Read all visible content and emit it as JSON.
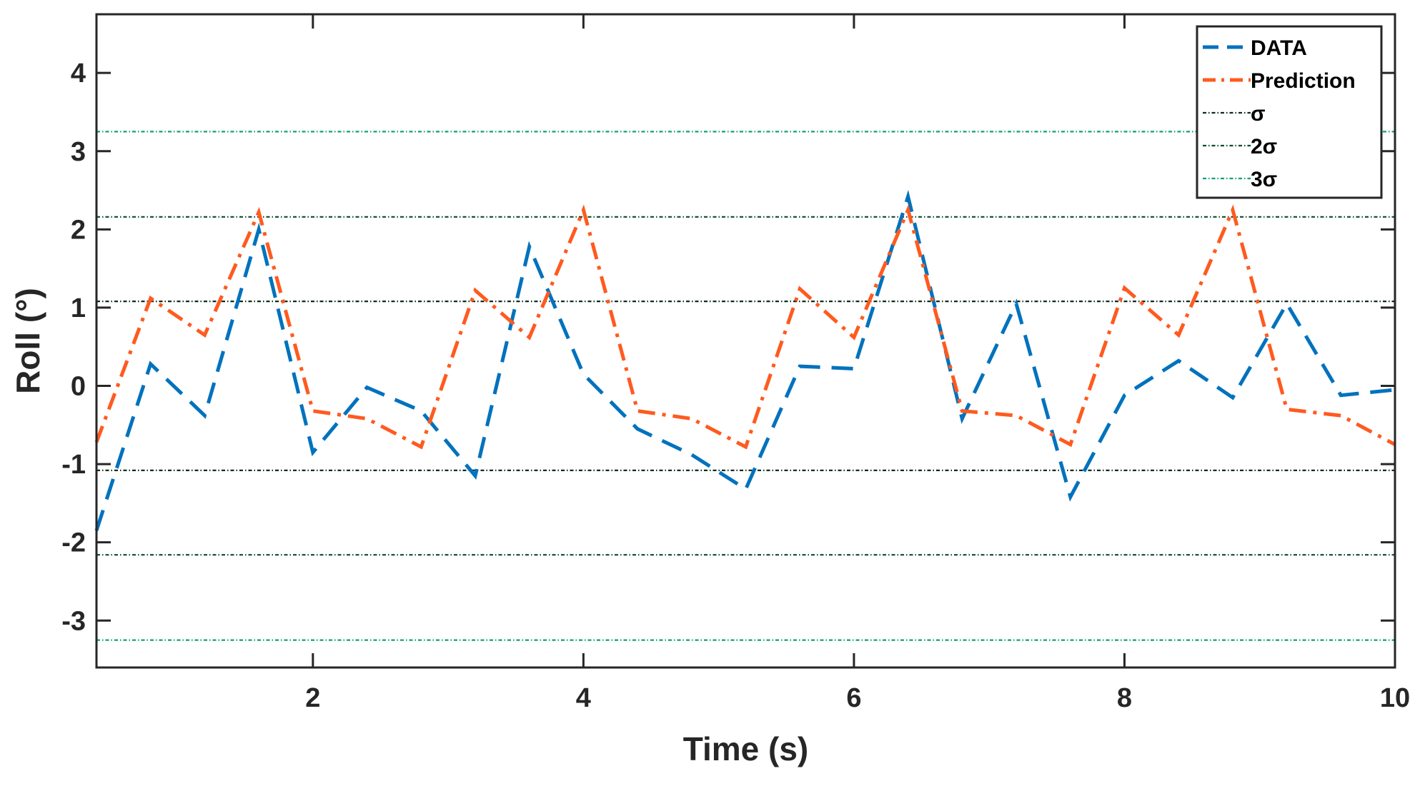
{
  "chart_data": {
    "type": "line",
    "xlabel": "Time (s)",
    "ylabel": "Roll (°)",
    "xlim": [
      0.4,
      10
    ],
    "ylim": [
      -3.6,
      4.75
    ],
    "xticks": [
      2,
      4,
      6,
      8,
      10
    ],
    "xtick_labels": [
      "2",
      "4",
      "6",
      "8",
      "10"
    ],
    "yticks": [
      -3,
      -2,
      -1,
      0,
      1,
      2,
      3,
      4
    ],
    "ytick_labels": [
      "-3",
      "-2",
      "-1",
      "0",
      "1",
      "2",
      "3",
      "4"
    ],
    "grid": false,
    "legend_position": "top-right",
    "series": [
      {
        "name": "DATA",
        "color": "#0072BD",
        "style": "dashed",
        "x": [
          0.4,
          0.8,
          1.2,
          1.6,
          2.0,
          2.4,
          2.8,
          3.2,
          3.6,
          4.0,
          4.4,
          4.8,
          5.2,
          5.6,
          6.0,
          6.4,
          6.8,
          7.2,
          7.6,
          8.0,
          8.4,
          8.8,
          9.2,
          9.6,
          10.0
        ],
        "y": [
          -1.85,
          0.28,
          -0.38,
          2.0,
          -0.85,
          -0.02,
          -0.32,
          -1.15,
          1.78,
          0.15,
          -0.55,
          -0.88,
          -1.32,
          0.25,
          0.22,
          2.42,
          -0.42,
          1.05,
          -1.42,
          -0.12,
          0.32,
          -0.15,
          1.05,
          -0.12,
          -0.05
        ]
      },
      {
        "name": "Prediction",
        "color": "#FF5A1F",
        "style": "dash-dot",
        "x": [
          0.4,
          0.8,
          1.2,
          1.6,
          2.0,
          2.4,
          2.8,
          3.2,
          3.6,
          4.0,
          4.4,
          4.8,
          5.2,
          5.6,
          6.0,
          6.4,
          6.8,
          7.2,
          7.6,
          8.0,
          8.4,
          8.8,
          9.2,
          9.6,
          10.0
        ],
        "y": [
          -0.72,
          1.12,
          0.65,
          2.22,
          -0.32,
          -0.42,
          -0.78,
          1.22,
          0.62,
          2.25,
          -0.32,
          -0.42,
          -0.78,
          1.24,
          0.62,
          2.25,
          -0.32,
          -0.38,
          -0.75,
          1.25,
          0.65,
          2.25,
          -0.3,
          -0.38,
          -0.75
        ]
      }
    ],
    "reference_lines": [
      {
        "name": "σ",
        "color": "#0B2E1A",
        "values": [
          1.08,
          -1.08
        ]
      },
      {
        "name": "2σ",
        "color": "#0D4A2A",
        "values": [
          2.16,
          -2.16
        ]
      },
      {
        "name": "3σ",
        "color": "#0FA07A",
        "values": [
          3.25,
          -3.25
        ]
      }
    ]
  }
}
